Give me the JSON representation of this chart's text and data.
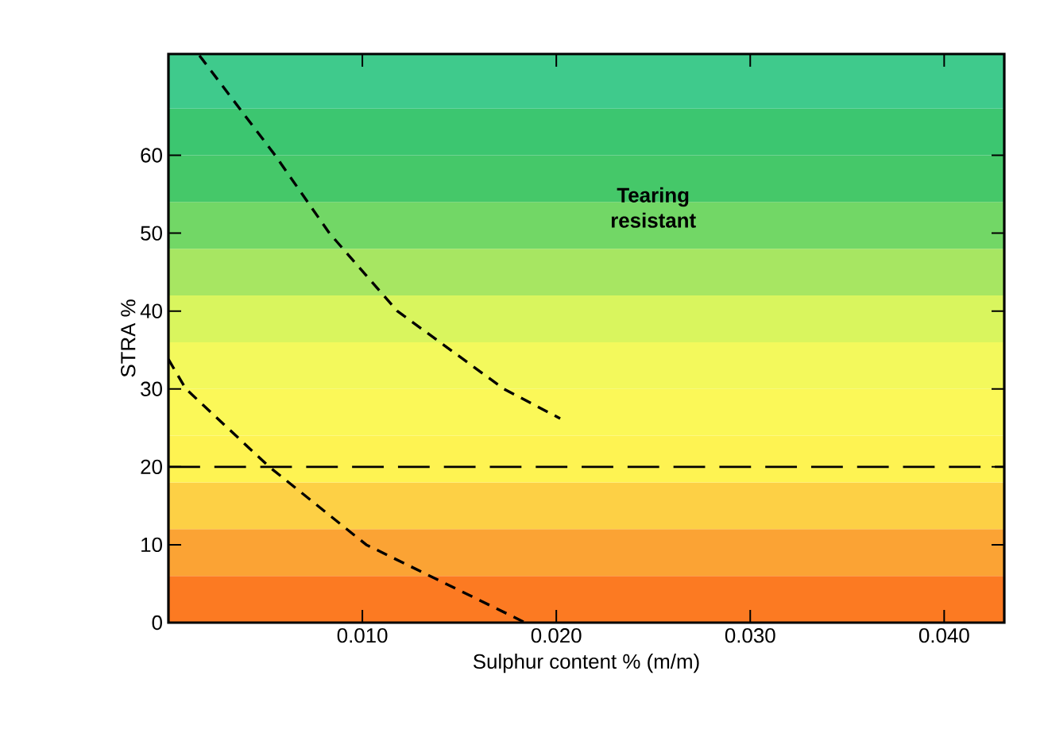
{
  "chart_data": {
    "type": "line",
    "xlabel": "Sulphur content % (m/m)",
    "ylabel": "STRA %",
    "xlim": [
      0,
      0.0431
    ],
    "ylim": [
      0,
      73
    ],
    "xticks": [
      {
        "value": 0.01,
        "label": "0.010"
      },
      {
        "value": 0.02,
        "label": "0.020"
      },
      {
        "value": 0.03,
        "label": "0.030"
      },
      {
        "value": 0.04,
        "label": "0.040"
      }
    ],
    "yticks": [
      0,
      10,
      20,
      30,
      40,
      50,
      60
    ],
    "tick_labels": "xy",
    "line_style": "dashed",
    "series": [
      {
        "color": "#000000",
        "x": [
          0.0016,
          0.0055,
          0.0083,
          0.0118,
          0.0173,
          0.0202
        ],
        "values": [
          72.8,
          60,
          50,
          40,
          30,
          26.2
        ]
      },
      {
        "color": "#000000",
        "x": [
          0,
          0.0009,
          0.0052,
          0.0102,
          0.0143,
          0.0184
        ],
        "values": [
          33.8,
          30,
          20,
          10,
          5,
          0
        ]
      }
    ],
    "ref_lines": [
      {
        "axis": "y",
        "value": 20,
        "color": "#000000",
        "line_style": "dashed"
      }
    ],
    "bands": [
      {
        "axis": "y",
        "from": 0,
        "to": 6,
        "color": "#fc7a22"
      },
      {
        "axis": "y",
        "from": 6,
        "to": 12,
        "color": "#fba334"
      },
      {
        "axis": "y",
        "from": 12,
        "to": 18,
        "color": "#fdd045"
      },
      {
        "axis": "y",
        "from": 18,
        "to": 24,
        "color": "#fef352"
      },
      {
        "axis": "y",
        "from": 24,
        "to": 30,
        "color": "#fbf858"
      },
      {
        "axis": "y",
        "from": 30,
        "to": 36,
        "color": "#f3f95c"
      },
      {
        "axis": "y",
        "from": 36,
        "to": 42,
        "color": "#d9f55e"
      },
      {
        "axis": "y",
        "from": 42,
        "to": 48,
        "color": "#a7e662"
      },
      {
        "axis": "y",
        "from": 48,
        "to": 54,
        "color": "#72d766"
      },
      {
        "axis": "y",
        "from": 54,
        "to": 60,
        "color": "#45c869"
      },
      {
        "axis": "y",
        "from": 60,
        "to": 66,
        "color": "#3cc670"
      },
      {
        "axis": "y",
        "from": 66,
        "to": 73,
        "color": "#3fca8c"
      }
    ],
    "annotations": [
      "Tearing resistant"
    ]
  }
}
